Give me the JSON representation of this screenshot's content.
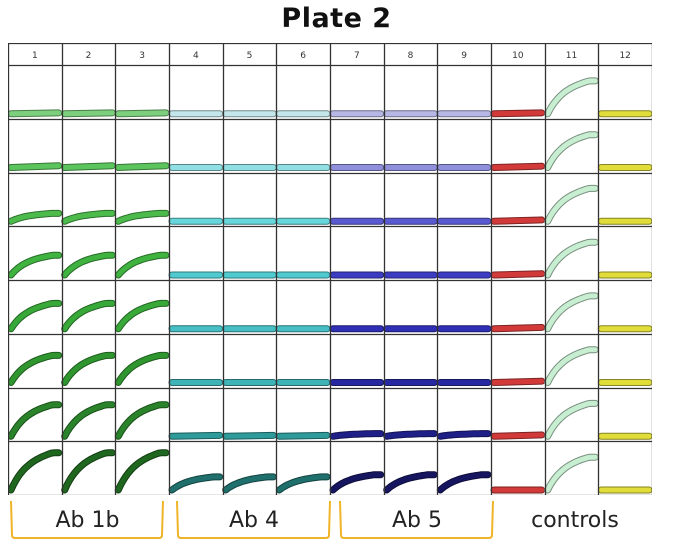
{
  "title": "Plate 2",
  "chart_data": {
    "type": "line",
    "title": "Plate 2",
    "layout": "96-well plate grid of small-multiple kinetic curves (8 rows x 12 columns)",
    "columns": [
      "1",
      "2",
      "3",
      "4",
      "5",
      "6",
      "7",
      "8",
      "9",
      "10",
      "11",
      "12"
    ],
    "rows": 8,
    "xlabel": "",
    "ylabel": "",
    "grid": true,
    "groups": [
      {
        "label": "Ab 1b",
        "columns": [
          1,
          2,
          3
        ],
        "color_family": "green"
      },
      {
        "label": "Ab 4",
        "columns": [
          4,
          5,
          6
        ],
        "color_family": "teal/cyan"
      },
      {
        "label": "Ab 5",
        "columns": [
          7,
          8,
          9
        ],
        "color_family": "blue"
      },
      {
        "label": "controls",
        "columns": [
          10,
          11,
          12
        ],
        "color_family": "red / pale green / yellow"
      }
    ],
    "row_colors": {
      "ab1b": [
        "#7ccf7c",
        "#5cc45c",
        "#4cbb4c",
        "#3fb23f",
        "#38a838",
        "#2f962f",
        "#2a832a",
        "#1f661f"
      ],
      "ab4": [
        "#c2e6ea",
        "#8fdfe3",
        "#66d6da",
        "#4fcbd0",
        "#45bfc4",
        "#3fb3b5",
        "#2f9a9a",
        "#1f6f6c"
      ],
      "ab5": [
        "#b7b7e6",
        "#8f8fdc",
        "#5a5ad0",
        "#3c3cc2",
        "#2f2fb5",
        "#2727a2",
        "#1f1f88",
        "#161660"
      ],
      "control_col10": "#d23a3a",
      "control_col11": "#c8eed2",
      "control_col12": "#e0dc3a"
    },
    "curve_rise_fraction": {
      "description": "Approximate end-point signal as fraction of well height (0 = flat baseline, 1 = top of well)",
      "ab1b": [
        0.02,
        0.04,
        0.18,
        0.45,
        0.58,
        0.62,
        0.72,
        0.85
      ],
      "ab4": [
        0.0,
        0.0,
        0.0,
        0.0,
        0.0,
        0.0,
        0.02,
        0.3
      ],
      "ab5": [
        0.0,
        0.0,
        0.0,
        0.0,
        0.0,
        0.0,
        0.06,
        0.35
      ],
      "control_col10": [
        0.02,
        0.03,
        0.03,
        0.03,
        0.03,
        0.03,
        0.03,
        0.0
      ],
      "control_col11": [
        0.75,
        0.75,
        0.75,
        0.75,
        0.75,
        0.75,
        0.75,
        0.75
      ],
      "control_col12": [
        0.0,
        0.0,
        0.0,
        0.0,
        0.0,
        0.0,
        0.0,
        0.0
      ]
    },
    "bracket_color": "#f0b429"
  },
  "groups": [
    {
      "label": "Ab 1b"
    },
    {
      "label": "Ab 4"
    },
    {
      "label": "Ab 5"
    },
    {
      "label": "controls"
    }
  ]
}
